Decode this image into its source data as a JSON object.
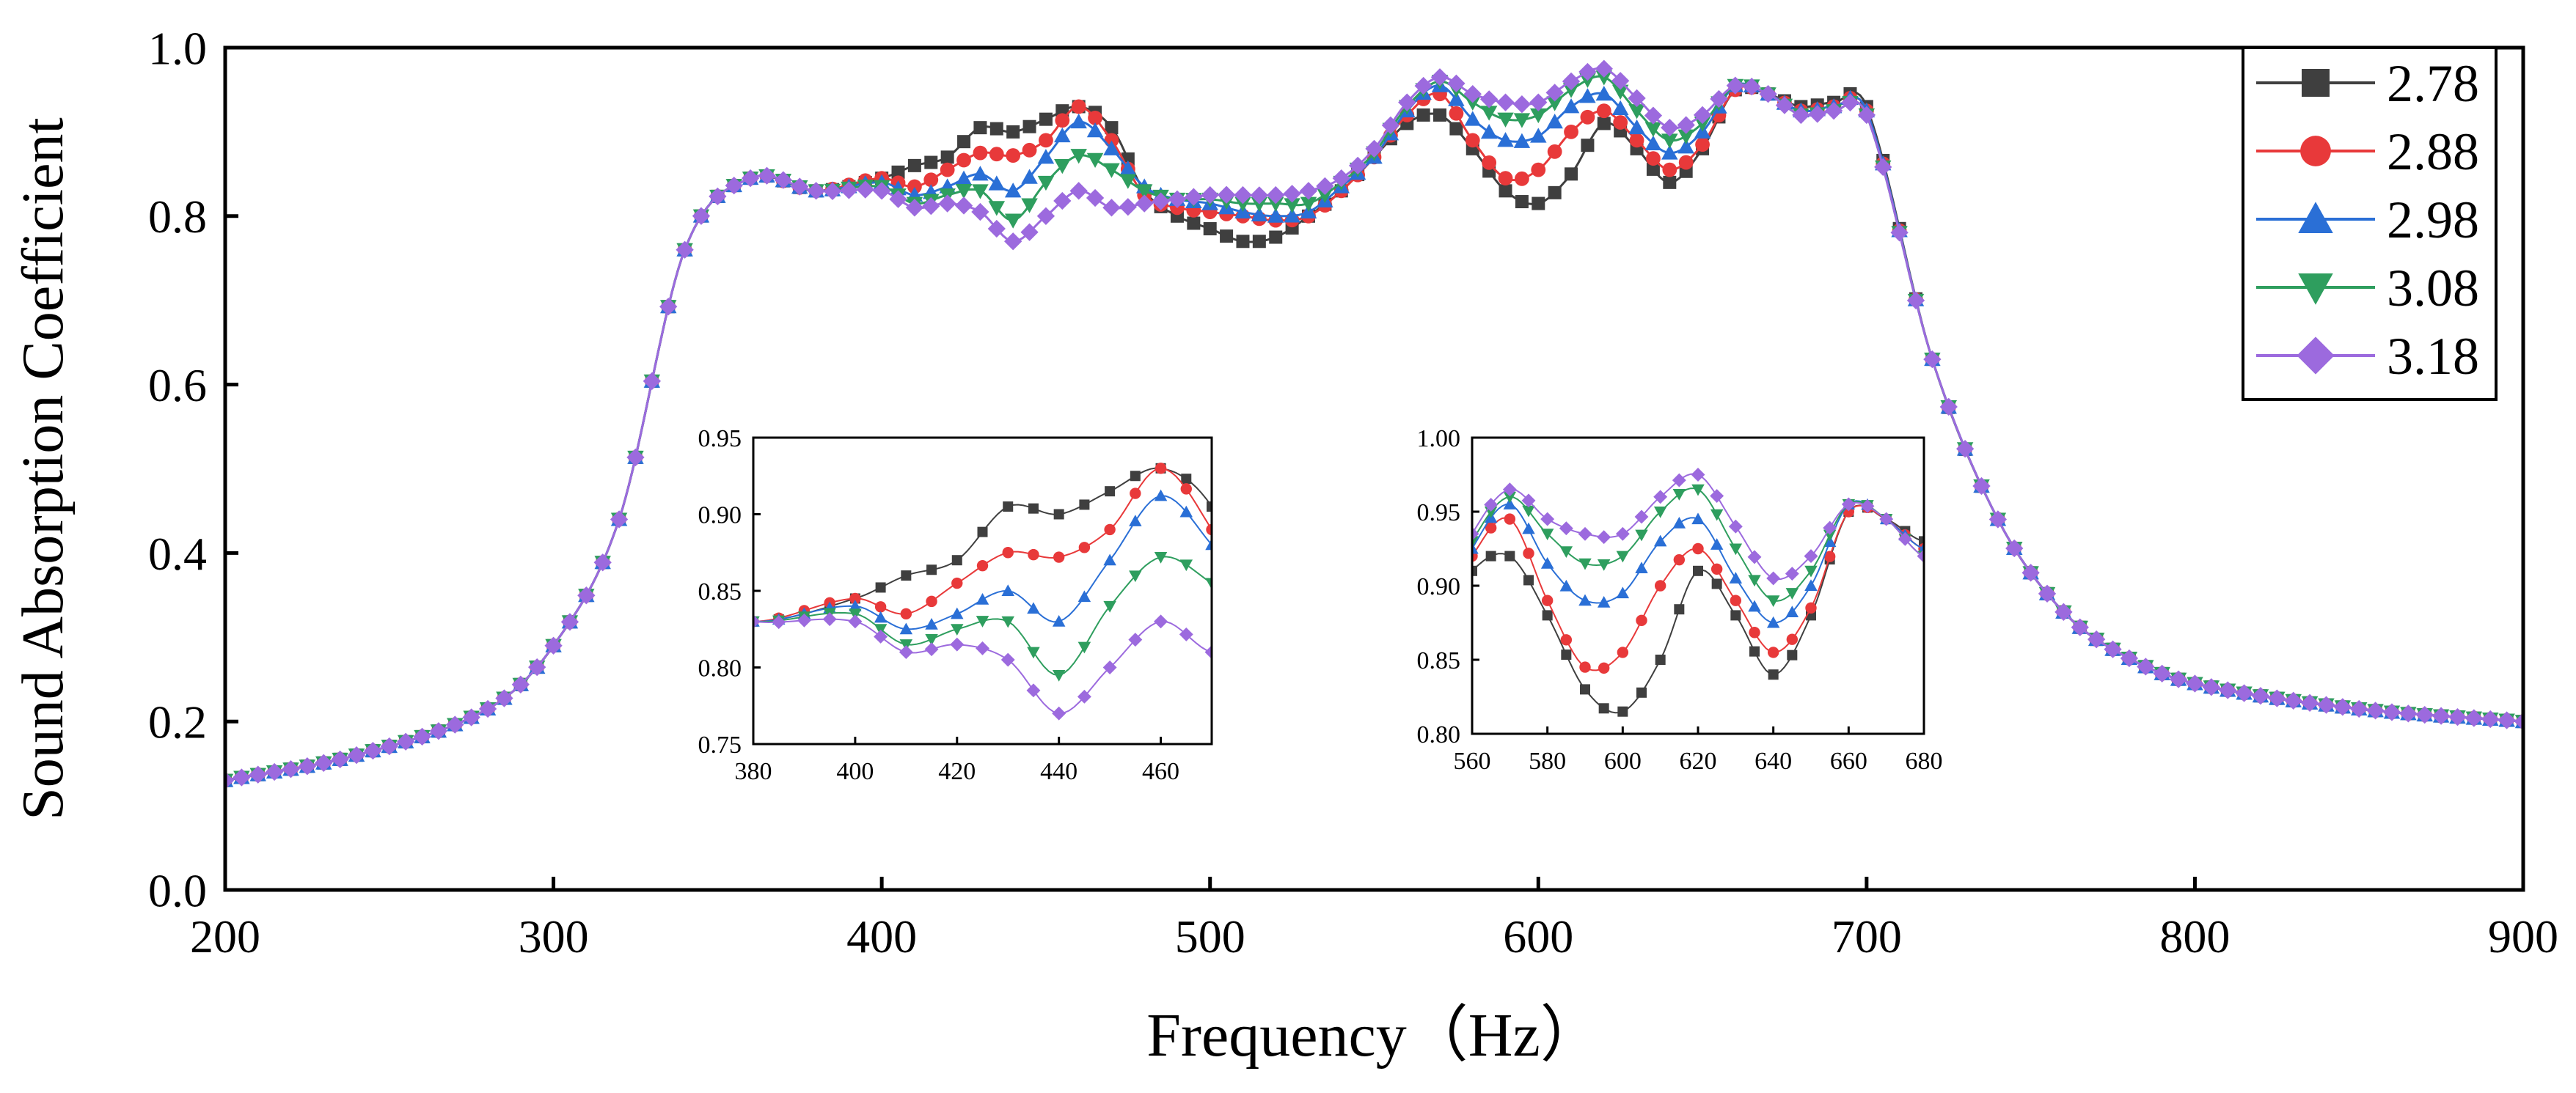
{
  "chart_data": [
    {
      "id": "main",
      "type": "line",
      "xlabel": "Frequency（Hz）",
      "ylabel": "Sound Absorption Coefficient",
      "xlim": [
        200,
        900
      ],
      "ylim": [
        0.0,
        1.0
      ],
      "xticks": [
        200,
        300,
        400,
        500,
        600,
        700,
        800,
        900
      ],
      "yticks": [
        0.0,
        0.2,
        0.4,
        0.6,
        0.8,
        1.0
      ],
      "ytick_labels": [
        "0.0",
        "0.2",
        "0.4",
        "0.6",
        "0.8",
        "1.0"
      ],
      "legend_position": "top-right",
      "marker_step_hz": 5,
      "curve_knots": {
        "x": [
          200,
          240,
          280,
          300,
          320,
          340,
          360,
          380,
          400,
          410,
          420,
          430,
          440,
          450,
          460,
          470,
          480,
          490,
          500,
          510,
          520,
          530,
          540,
          550,
          560,
          570,
          580,
          590,
          600,
          610,
          620,
          630,
          640,
          650,
          660,
          670,
          680,
          690,
          700,
          720,
          740,
          760,
          780,
          800,
          850,
          900
        ],
        "shared_start": [
          [
            200,
            0.13
          ],
          [
            240,
            0.16
          ],
          [
            280,
            0.215
          ],
          [
            300,
            0.29
          ],
          [
            320,
            0.44
          ],
          [
            340,
            0.76
          ],
          [
            360,
            0.845
          ],
          [
            380,
            0.83
          ]
        ],
        "shared_end": [
          [
            720,
            0.63
          ],
          [
            740,
            0.44
          ],
          [
            760,
            0.33
          ],
          [
            780,
            0.275
          ],
          [
            800,
            0.245
          ],
          [
            850,
            0.215
          ],
          [
            900,
            0.2
          ]
        ]
      },
      "series": [
        {
          "name": "2.78",
          "marker": "square",
          "color": "#3f3f3f",
          "x": [
            400,
            410,
            420,
            430,
            440,
            450,
            460,
            470,
            480,
            490,
            500,
            510,
            520,
            530,
            540,
            550,
            560,
            570,
            580,
            590,
            600,
            610,
            620,
            630,
            640,
            650,
            660,
            670,
            680,
            690,
            700
          ],
          "y": [
            0.845,
            0.86,
            0.87,
            0.905,
            0.9,
            0.915,
            0.93,
            0.905,
            0.83,
            0.8,
            0.785,
            0.77,
            0.775,
            0.8,
            0.83,
            0.87,
            0.91,
            0.92,
            0.88,
            0.83,
            0.815,
            0.85,
            0.91,
            0.88,
            0.84,
            0.88,
            0.95,
            0.945,
            0.93,
            0.935,
            0.93
          ]
        },
        {
          "name": "2.88",
          "marker": "circle",
          "color": "#e8393a",
          "x": [
            400,
            410,
            420,
            430,
            440,
            450,
            460,
            470,
            480,
            490,
            500,
            510,
            520,
            530,
            540,
            550,
            560,
            570,
            580,
            590,
            600,
            610,
            620,
            630,
            640,
            650,
            660,
            670,
            680,
            690,
            700
          ],
          "y": [
            0.845,
            0.835,
            0.855,
            0.875,
            0.872,
            0.89,
            0.93,
            0.89,
            0.825,
            0.81,
            0.805,
            0.8,
            0.795,
            0.8,
            0.83,
            0.87,
            0.92,
            0.945,
            0.89,
            0.845,
            0.855,
            0.9,
            0.925,
            0.89,
            0.855,
            0.885,
            0.95,
            0.945,
            0.925,
            0.93,
            0.925
          ]
        },
        {
          "name": "2.98",
          "marker": "triangle-up",
          "color": "#2a6fd6",
          "x": [
            400,
            410,
            420,
            430,
            440,
            450,
            460,
            470,
            480,
            490,
            500,
            510,
            520,
            530,
            540,
            550,
            560,
            570,
            580,
            590,
            600,
            610,
            620,
            630,
            640,
            650,
            660,
            670,
            680,
            690,
            700
          ],
          "y": [
            0.84,
            0.825,
            0.835,
            0.85,
            0.83,
            0.87,
            0.912,
            0.88,
            0.835,
            0.82,
            0.815,
            0.805,
            0.8,
            0.805,
            0.835,
            0.87,
            0.925,
            0.955,
            0.915,
            0.89,
            0.895,
            0.93,
            0.945,
            0.905,
            0.875,
            0.9,
            0.955,
            0.945,
            0.925,
            0.93,
            0.925
          ]
        },
        {
          "name": "3.08",
          "marker": "triangle-down",
          "color": "#2e9e5e",
          "x": [
            400,
            410,
            420,
            430,
            440,
            450,
            460,
            470,
            480,
            490,
            500,
            510,
            520,
            530,
            540,
            550,
            560,
            570,
            580,
            590,
            600,
            610,
            620,
            630,
            640,
            650,
            660,
            670,
            680,
            690,
            700
          ],
          "y": [
            0.835,
            0.815,
            0.825,
            0.83,
            0.795,
            0.84,
            0.872,
            0.855,
            0.83,
            0.82,
            0.82,
            0.815,
            0.815,
            0.815,
            0.84,
            0.875,
            0.93,
            0.96,
            0.935,
            0.915,
            0.92,
            0.95,
            0.965,
            0.925,
            0.89,
            0.91,
            0.955,
            0.945,
            0.92,
            0.925,
            0.92
          ]
        },
        {
          "name": "3.18",
          "marker": "diamond",
          "color": "#9c6ade",
          "x": [
            400,
            410,
            420,
            430,
            440,
            450,
            460,
            470,
            480,
            490,
            500,
            510,
            520,
            530,
            540,
            550,
            560,
            570,
            580,
            590,
            600,
            610,
            620,
            630,
            640,
            650,
            660,
            670,
            680,
            690,
            700
          ],
          "y": [
            0.83,
            0.81,
            0.815,
            0.805,
            0.77,
            0.8,
            0.83,
            0.81,
            0.815,
            0.82,
            0.825,
            0.825,
            0.825,
            0.83,
            0.845,
            0.88,
            0.935,
            0.965,
            0.945,
            0.935,
            0.935,
            0.96,
            0.975,
            0.94,
            0.905,
            0.92,
            0.955,
            0.945,
            0.92,
            0.925,
            0.92
          ]
        }
      ]
    },
    {
      "id": "inset-left",
      "type": "line",
      "xlim": [
        380,
        470
      ],
      "ylim": [
        0.75,
        0.95
      ],
      "xticks": [
        380,
        400,
        420,
        440,
        460
      ],
      "yticks": [
        0.75,
        0.8,
        0.85,
        0.9,
        0.95
      ],
      "ytick_labels": [
        "0.75",
        "0.80",
        "0.85",
        "0.90",
        "0.95"
      ],
      "marker_step_hz": 5
    },
    {
      "id": "inset-right",
      "type": "line",
      "xlim": [
        560,
        680
      ],
      "ylim": [
        0.8,
        1.0
      ],
      "xticks": [
        560,
        580,
        600,
        620,
        640,
        660,
        680
      ],
      "yticks": [
        0.8,
        0.85,
        0.9,
        0.95,
        1.0
      ],
      "ytick_labels": [
        "0.80",
        "0.85",
        "0.90",
        "0.95",
        "1.00"
      ],
      "marker_step_hz": 5
    }
  ]
}
